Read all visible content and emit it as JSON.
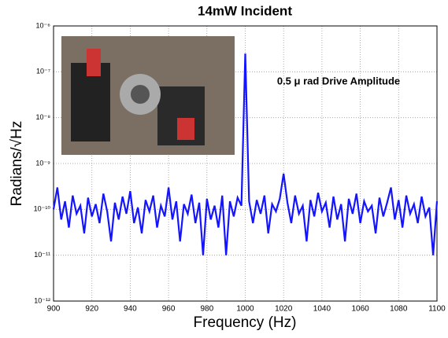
{
  "chart_data": {
    "type": "line",
    "title": "14mW Incident",
    "x_label": "Frequency (Hz)",
    "y_label": "Radians/√Hz",
    "annotation": "0.5 μ rad Drive Amplitude",
    "y_log": true,
    "grid": true,
    "xlim": [
      900,
      1100
    ],
    "xticks": [
      900,
      920,
      940,
      960,
      980,
      1000,
      1020,
      1040,
      1060,
      1080,
      1100
    ],
    "ylim": [
      1e-12,
      1e-06
    ],
    "yticks": [
      {
        "value": 1e-12,
        "label": "10⁻¹²"
      },
      {
        "value": 1e-11,
        "label": "10⁻¹¹"
      },
      {
        "value": 1e-10,
        "label": "10⁻¹⁰"
      },
      {
        "value": 1e-09,
        "label": "10⁻⁹"
      },
      {
        "value": 1e-08,
        "label": "10⁻⁸"
      },
      {
        "value": 1e-07,
        "label": "10⁻⁷"
      },
      {
        "value": 1e-06,
        "label": "10⁻⁶"
      }
    ],
    "x": [
      900,
      902,
      904,
      906,
      908,
      910,
      912,
      914,
      916,
      918,
      920,
      922,
      924,
      926,
      928,
      930,
      932,
      934,
      936,
      938,
      940,
      942,
      944,
      946,
      948,
      950,
      952,
      954,
      956,
      958,
      960,
      962,
      964,
      966,
      968,
      970,
      972,
      974,
      976,
      978,
      980,
      982,
      984,
      986,
      988,
      990,
      992,
      994,
      996,
      998,
      1000,
      1002,
      1004,
      1006,
      1008,
      1010,
      1012,
      1014,
      1016,
      1018,
      1020,
      1022,
      1024,
      1026,
      1028,
      1030,
      1032,
      1034,
      1036,
      1038,
      1040,
      1042,
      1044,
      1046,
      1048,
      1050,
      1052,
      1054,
      1056,
      1058,
      1060,
      1062,
      1064,
      1066,
      1068,
      1070,
      1072,
      1074,
      1076,
      1078,
      1080,
      1082,
      1084,
      1086,
      1088,
      1090,
      1092,
      1094,
      1096,
      1098,
      1100
    ],
    "series": [
      {
        "color": "#1414ff",
        "values": [
          1e-10,
          3e-10,
          6e-11,
          1.5e-10,
          4e-11,
          2e-10,
          8e-11,
          1.2e-10,
          3e-11,
          1.8e-10,
          7e-11,
          1.3e-10,
          5e-11,
          2.2e-10,
          9e-11,
          2e-11,
          1.4e-10,
          6e-11,
          1.9e-10,
          8e-11,
          2.5e-10,
          5e-11,
          1.1e-10,
          3e-11,
          1.6e-10,
          9e-11,
          2e-10,
          4e-11,
          1.2e-10,
          7e-11,
          3e-10,
          6e-11,
          1.5e-10,
          2e-11,
          1.3e-10,
          8e-11,
          2.1e-10,
          5e-11,
          1.4e-10,
          1e-11,
          1.7e-10,
          6e-11,
          1.2e-10,
          4e-11,
          2e-10,
          1e-11,
          1.5e-10,
          7e-11,
          1.8e-10,
          1.2e-10,
          2.5e-07,
          1.5e-10,
          5e-11,
          1.6e-10,
          8e-11,
          2e-10,
          3e-11,
          1.3e-10,
          9e-11,
          1.7e-10,
          6e-10,
          1.4e-10,
          5e-11,
          2e-10,
          8e-11,
          1.2e-10,
          2e-11,
          1.6e-10,
          7e-11,
          2.3e-10,
          9e-11,
          1.4e-10,
          4e-11,
          1.9e-10,
          6e-11,
          1.3e-10,
          2e-11,
          1.7e-10,
          8e-11,
          2.2e-10,
          5e-11,
          1.5e-10,
          9e-11,
          1.2e-10,
          3e-11,
          1.8e-10,
          7e-11,
          1.4e-10,
          3e-10,
          6e-11,
          1.6e-10,
          4e-11,
          2e-10,
          8e-11,
          1.3e-10,
          5e-11,
          1.9e-10,
          7e-11,
          1.1e-10,
          1e-11,
          1.5e-10
        ]
      }
    ]
  }
}
